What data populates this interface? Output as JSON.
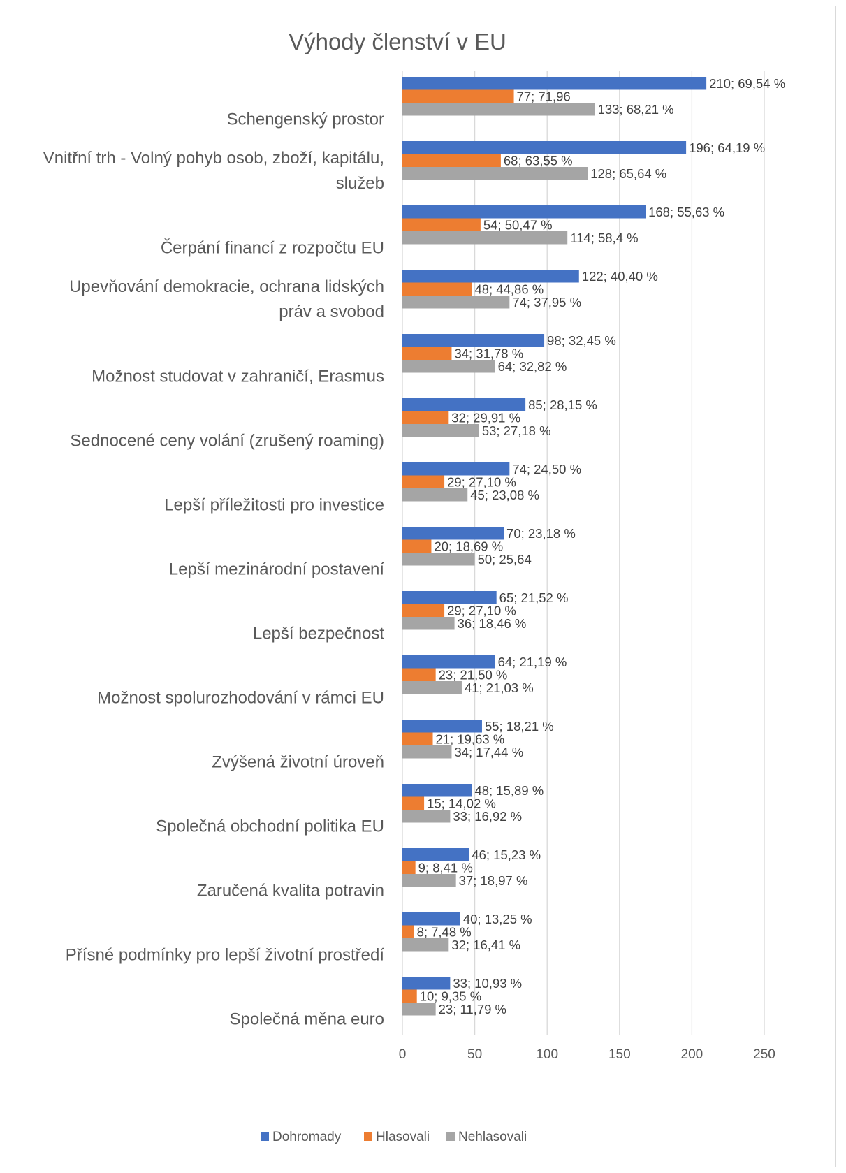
{
  "chart_data": {
    "type": "bar",
    "orientation": "horizontal",
    "title": "Výhody členství v EU",
    "categories": [
      "Schengenský prostor",
      "Vnitřní trh - Volný pohyb osob, zboží, kapitálu, služeb",
      "Čerpání financí z rozpočtu EU",
      "Upevňování demokracie, ochrana lidských práv a svobod",
      "Možnost studovat v zahraničí, Erasmus",
      "Sednocené ceny volání (zrušený roaming)",
      "Lepší příležitosti pro investice",
      "Lepší mezinárodní postavení",
      "Lepší bezpečnost",
      "Možnost spolurozhodování v rámci EU",
      "Zvýšená životní úroveň",
      "Společná obchodní politika EU",
      "Zaručená kvalita potravin",
      "Přísné podmínky pro lepší životní prostředí",
      "Společná měna euro"
    ],
    "category_lines": [
      [
        "Schengenský prostor"
      ],
      [
        "Vnitřní trh - Volný pohyb osob, zboží, kapitálu,",
        "služeb"
      ],
      [
        "Čerpání financí z rozpočtu EU"
      ],
      [
        "Upevňování demokracie, ochrana lidských",
        "práv a svobod"
      ],
      [
        "Možnost studovat v zahraničí, Erasmus"
      ],
      [
        "Sednocené ceny volání (zrušený roaming)"
      ],
      [
        "Lepší příležitosti pro investice"
      ],
      [
        "Lepší mezinárodní postavení"
      ],
      [
        "Lepší bezpečnost"
      ],
      [
        "Možnost spolurozhodování v rámci EU"
      ],
      [
        "Zvýšená životní úroveň"
      ],
      [
        "Společná obchodní politika EU"
      ],
      [
        "Zaručená kvalita potravin"
      ],
      [
        "Přísné podmínky pro lepší životní prostředí"
      ],
      [
        "Společná měna euro"
      ]
    ],
    "series": [
      {
        "name": "Dohromady",
        "color": "#4472c4",
        "values": [
          210,
          196,
          168,
          122,
          98,
          85,
          74,
          70,
          65,
          64,
          55,
          48,
          46,
          40,
          33
        ],
        "labels": [
          "210; 69,54 %",
          "196; 64,19 %",
          "168; 55,63 %",
          "122; 40,40 %",
          "98; 32,45 %",
          "85; 28,15 %",
          "74; 24,50 %",
          "70; 23,18 %",
          "65; 21,52 %",
          "64; 21,19 %",
          "55; 18,21 %",
          "48; 15,89 %",
          "46; 15,23 %",
          "40; 13,25 %",
          "33; 10,93 %"
        ]
      },
      {
        "name": "Hlasovali",
        "color": "#ed7d31",
        "values": [
          77,
          68,
          54,
          48,
          34,
          32,
          29,
          20,
          29,
          23,
          21,
          15,
          9,
          8,
          10
        ],
        "labels": [
          "77; 71,96",
          "68; 63,55 %",
          "54; 50,47 %",
          "48; 44,86 %",
          "34; 31,78 %",
          "32; 29,91 %",
          "29; 27,10 %",
          "20; 18,69 %",
          "29; 27,10 %",
          "23; 21,50 %",
          "21; 19,63 %",
          "15; 14,02 %",
          "9; 8,41 %",
          "8; 7,48 %",
          "10; 9,35 %"
        ]
      },
      {
        "name": "Nehlasovali",
        "color": "#a5a5a5",
        "values": [
          133,
          128,
          114,
          74,
          64,
          53,
          45,
          50,
          36,
          41,
          34,
          33,
          37,
          32,
          23
        ],
        "labels": [
          "133; 68,21 %",
          "128; 65,64 %",
          "114; 58,4 %",
          "74; 37,95 %",
          "64; 32,82 %",
          "53; 27,18 %",
          "45; 23,08 %",
          "50; 25,64",
          "36; 18,46 %",
          "41; 21,03 %",
          "34; 17,44 %",
          "33; 16,92 %",
          "37; 18,97 %",
          "32; 16,41 %",
          "23; 11,79 %"
        ]
      }
    ],
    "xlim": [
      0,
      250
    ],
    "xticks": [
      0,
      50,
      100,
      150,
      200,
      250
    ],
    "grid": true,
    "legend_position": "bottom"
  }
}
